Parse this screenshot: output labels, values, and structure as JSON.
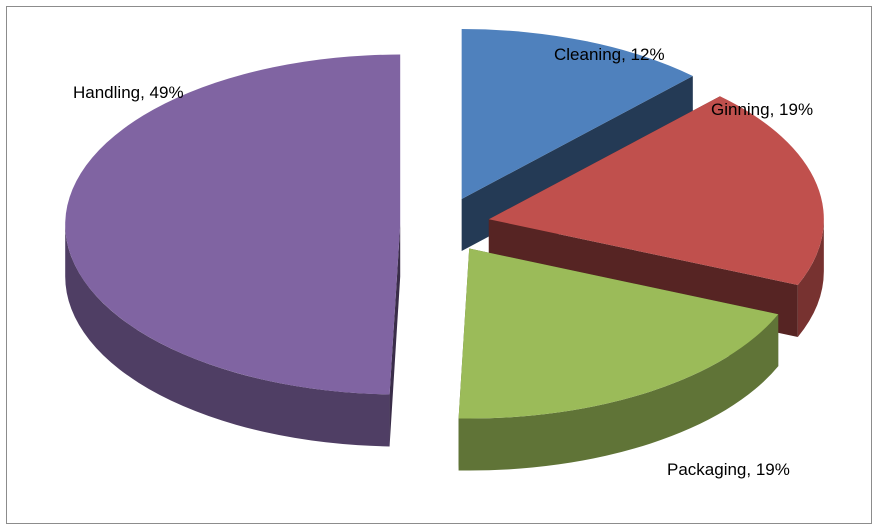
{
  "chart_data": {
    "type": "pie",
    "style": "3d-exploded",
    "legend": "none",
    "slices": [
      {
        "name": "Cleaning",
        "value": 12,
        "label": "Cleaning, 12%",
        "color": "#4f81bd"
      },
      {
        "name": "Ginning",
        "value": 19,
        "label": "Ginning, 19%",
        "color": "#c0504d"
      },
      {
        "name": "Packaging",
        "value": 19,
        "label": "Packaging, 19%",
        "color": "#9bbb59"
      },
      {
        "name": "Handling",
        "value": 49,
        "label": "Handling, 49%",
        "color": "#8064a2"
      }
    ]
  }
}
